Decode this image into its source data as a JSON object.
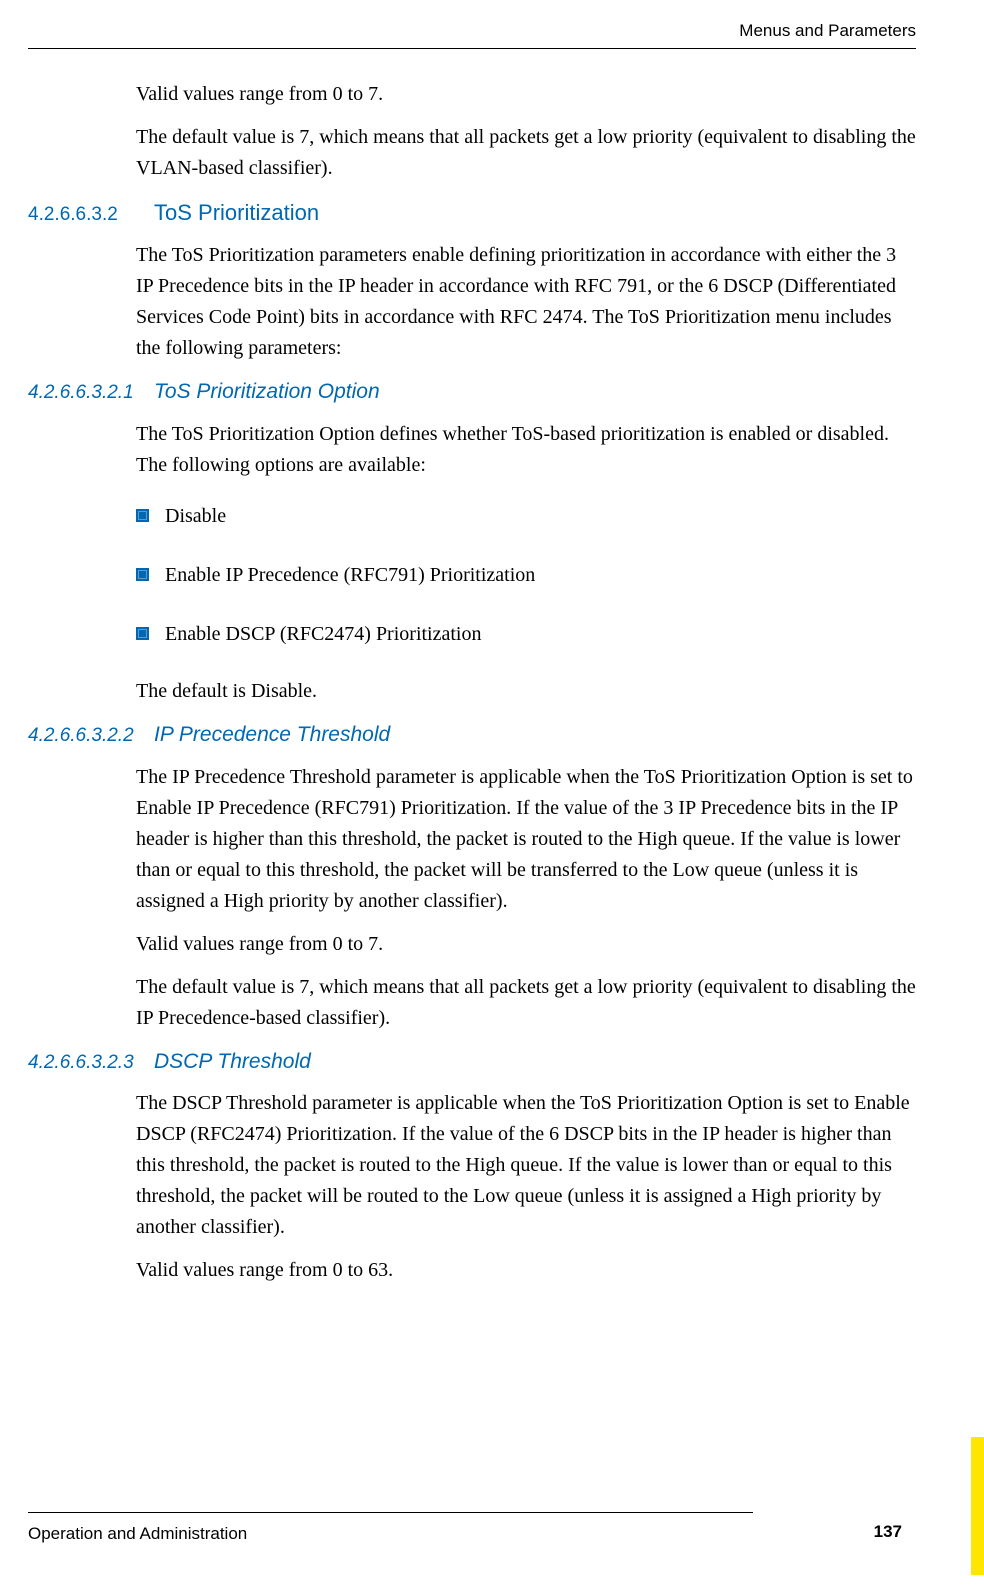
{
  "header": {
    "title": "Menus and Parameters"
  },
  "intro": {
    "p1": "Valid values range from 0 to 7.",
    "p2": "The default value is 7, which means that all packets get a low priority (equivalent to disabling the VLAN-based classifier)."
  },
  "s1": {
    "num": "4.2.6.6.3.2",
    "title": "ToS Prioritization",
    "p1": "The ToS Prioritization parameters enable defining prioritization in accordance with either the 3 IP Precedence bits in the IP header in accordance with RFC 791, or the 6 DSCP (Differentiated Services Code Point) bits in accordance with RFC 2474. The ToS Prioritization menu includes the following parameters:"
  },
  "s2": {
    "num": "4.2.6.6.3.2.1",
    "title": "ToS Prioritization Option",
    "p1": "The ToS Prioritization Option defines whether ToS-based prioritization is enabled or disabled. The following options are available:",
    "bullets": [
      "Disable",
      "Enable IP Precedence (RFC791) Prioritization",
      "Enable DSCP (RFC2474) Prioritization"
    ],
    "p2": "The default is Disable."
  },
  "s3": {
    "num": "4.2.6.6.3.2.2",
    "title": "IP Precedence Threshold",
    "p1": "The IP Precedence Threshold parameter is applicable when the ToS Prioritization Option is set to Enable IP Precedence (RFC791) Prioritization. If the value of the 3 IP Precedence bits in the IP header is higher than this threshold, the packet is routed to the High queue. If the value is lower than or equal to this threshold, the packet will be transferred to the Low queue (unless it is assigned a High priority by another classifier).",
    "p2": "Valid values range from 0 to 7.",
    "p3": "The default value is 7, which means that all packets get a low priority (equivalent to disabling the IP Precedence-based classifier)."
  },
  "s4": {
    "num": "4.2.6.6.3.2.3",
    "title": "DSCP Threshold",
    "p1": "The DSCP Threshold parameter is applicable when the ToS Prioritization Option is set to Enable DSCP (RFC2474) Prioritization. If the value of the 6 DSCP bits in the IP header is higher than this threshold, the packet is routed to the High queue. If the value is lower than or equal to this threshold, the packet will be routed to the Low queue (unless it is assigned a High priority by another classifier).",
    "p2": "Valid values range from 0 to 63."
  },
  "footer": {
    "left": "Operation and Administration",
    "page": "137"
  },
  "colors": {
    "heading_blue": "#0067b2",
    "accent_yellow": "#ffe600",
    "text": "#000000",
    "bg": "#ffffff"
  }
}
